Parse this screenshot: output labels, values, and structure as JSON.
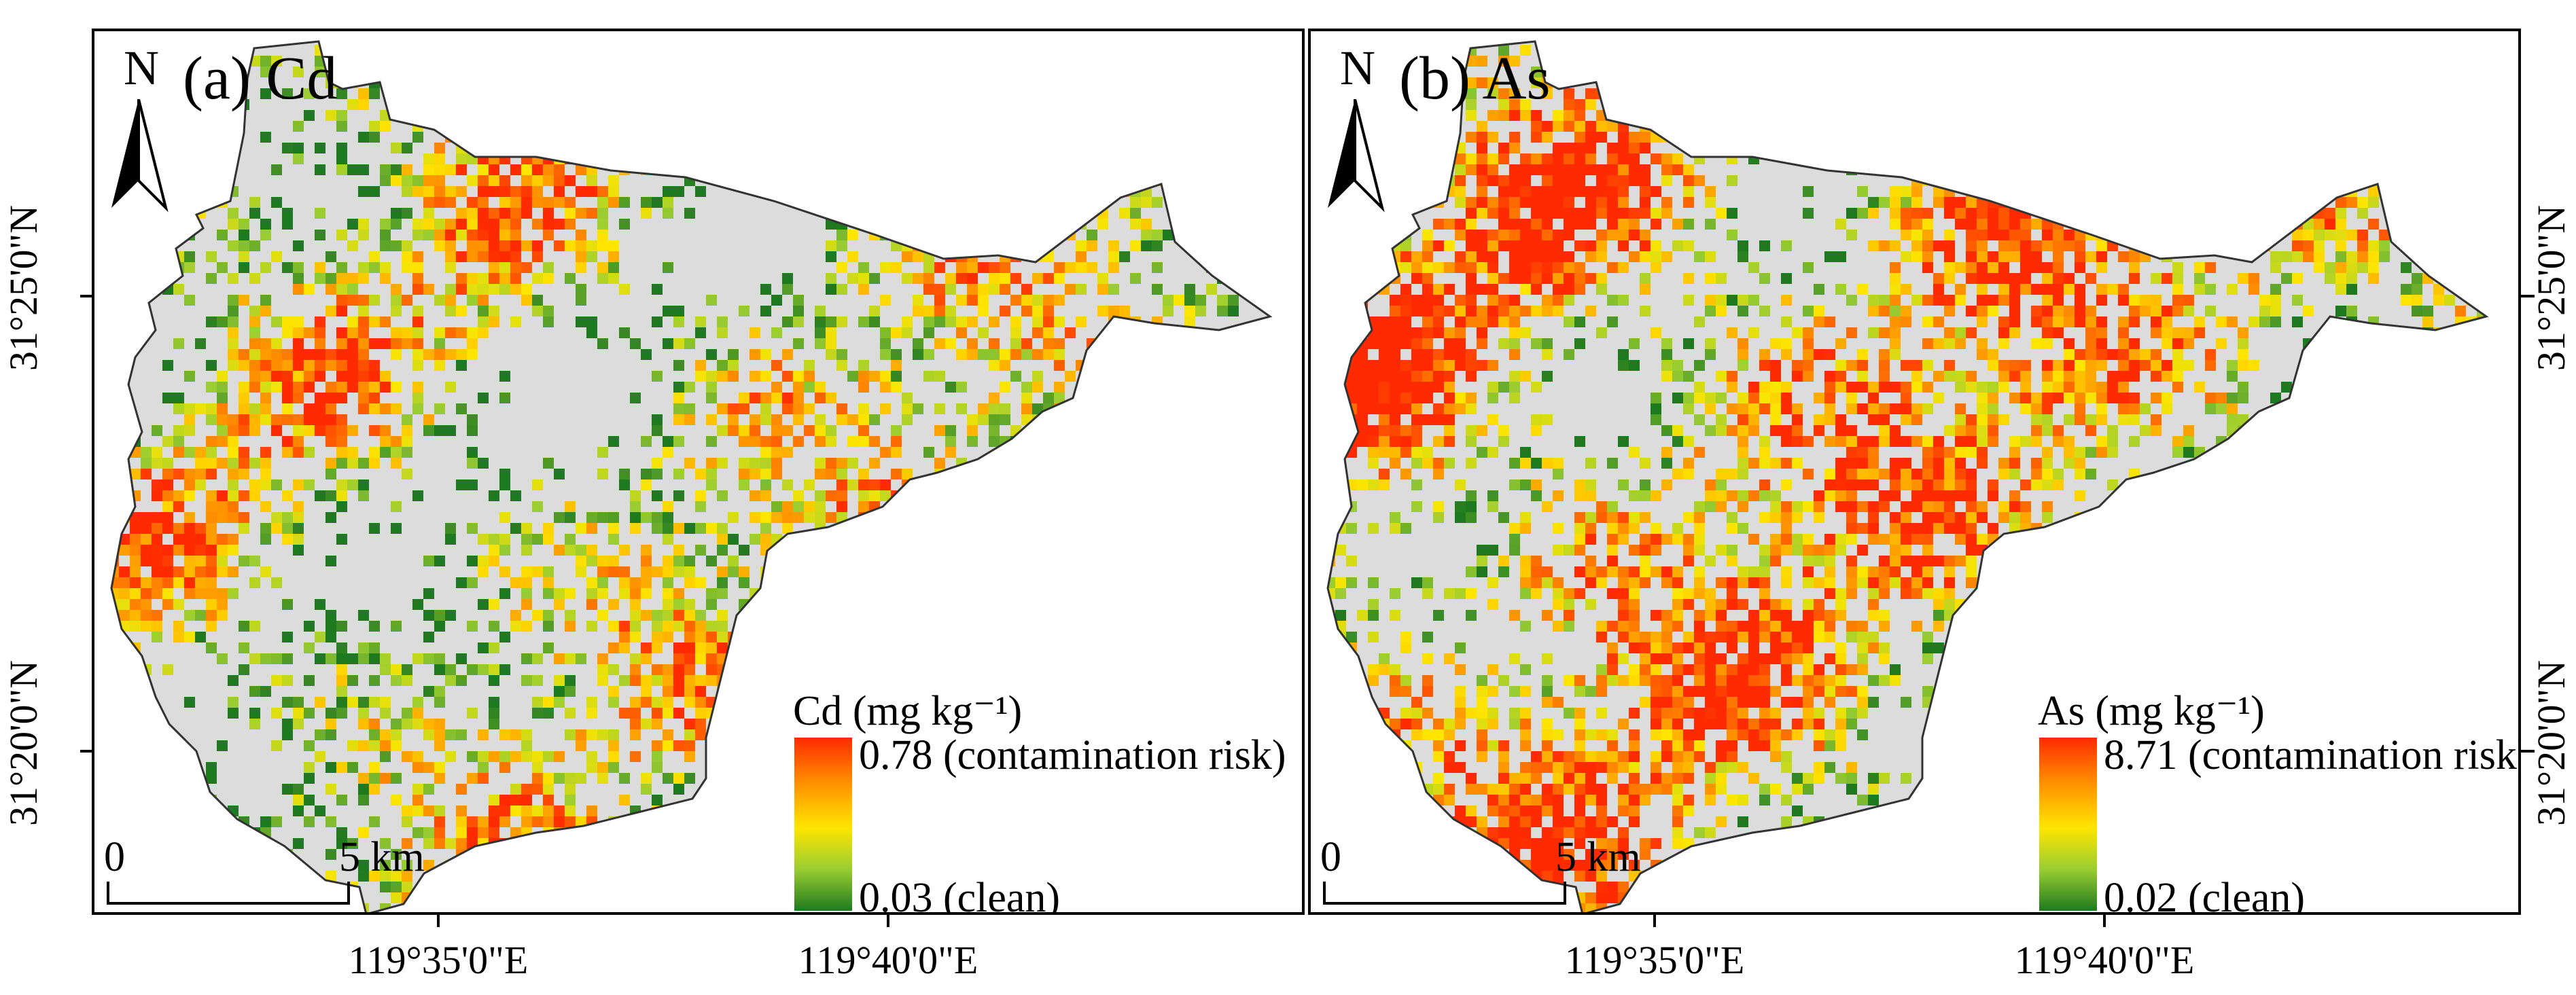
{
  "panels": [
    {
      "id": "a",
      "title": "(a) Cd",
      "north_label": "N",
      "legend": {
        "title": "Cd (mg kg⁻¹)",
        "max_label": "0.78 (contamination risk)",
        "min_label": "0.03 (clean)",
        "max_value": 0.78,
        "min_value": 0.03,
        "colors": [
          "#ff2a00",
          "#ff8c00",
          "#ffe600",
          "#9acd32",
          "#1e7a1e"
        ]
      },
      "scalebar": {
        "start_label": "0",
        "end_label": "5 km"
      },
      "longitude_labels": [
        "119°35'0\"E",
        "119°40'0\"E"
      ],
      "latitude_labels": [
        "31°25'0\"N",
        "31°20'0\"N"
      ]
    },
    {
      "id": "b",
      "title": "(b) As",
      "north_label": "N",
      "legend": {
        "title": "As (mg kg⁻¹)",
        "max_label": "8.71 (contamination risk)",
        "min_label": "0.02 (clean)",
        "max_value": 8.71,
        "min_value": 0.02,
        "colors": [
          "#ff2a00",
          "#ff8c00",
          "#ffe600",
          "#9acd32",
          "#1e7a1e"
        ]
      },
      "scalebar": {
        "start_label": "0",
        "end_label": "5 km"
      },
      "longitude_labels": [
        "119°35'0\"E",
        "119°40'0\"E"
      ],
      "latitude_labels": [
        "31°25'0\"N",
        "31°20'0\"N"
      ]
    }
  ],
  "map_style": {
    "background_fill": "#dcdcdc",
    "outline": "#333333"
  }
}
